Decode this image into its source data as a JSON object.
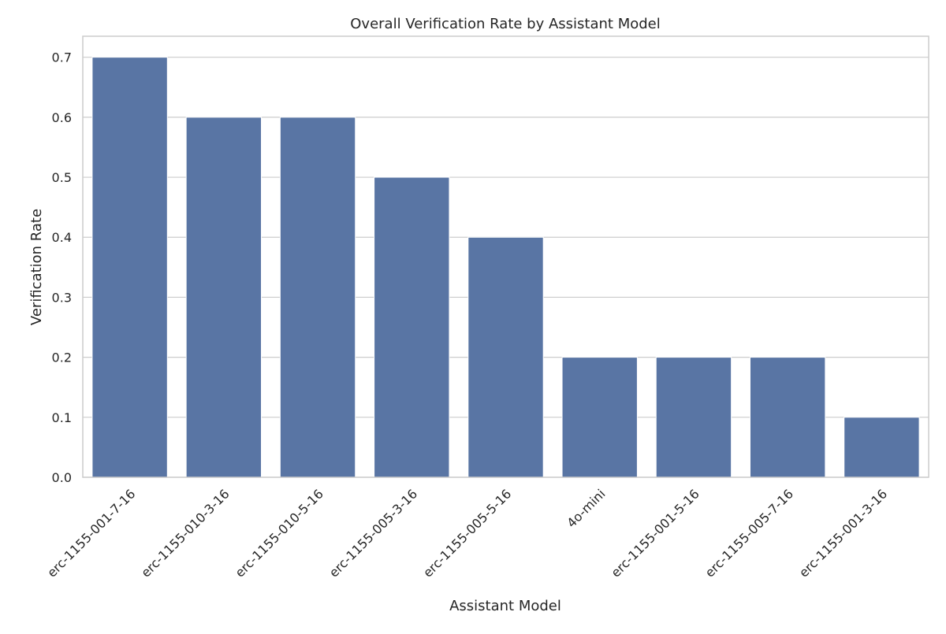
{
  "chart_data": {
    "type": "bar",
    "title": "Overall Verification Rate by Assistant Model",
    "xlabel": "Assistant Model",
    "ylabel": "Verification Rate",
    "categories": [
      "erc-1155-001-7-16",
      "erc-1155-010-3-16",
      "erc-1155-010-5-16",
      "erc-1155-005-3-16",
      "erc-1155-005-5-16",
      "4o-mini",
      "erc-1155-001-5-16",
      "erc-1155-005-7-16",
      "erc-1155-001-3-16"
    ],
    "values": [
      0.7,
      0.6,
      0.6,
      0.5,
      0.4,
      0.2,
      0.2,
      0.2,
      0.1
    ],
    "ylim": [
      0,
      0.735
    ],
    "yticks": [
      "0.0",
      "0.1",
      "0.2",
      "0.3",
      "0.4",
      "0.5",
      "0.6",
      "0.7"
    ],
    "grid": "horizontal",
    "bar_color": "#5975a4"
  }
}
